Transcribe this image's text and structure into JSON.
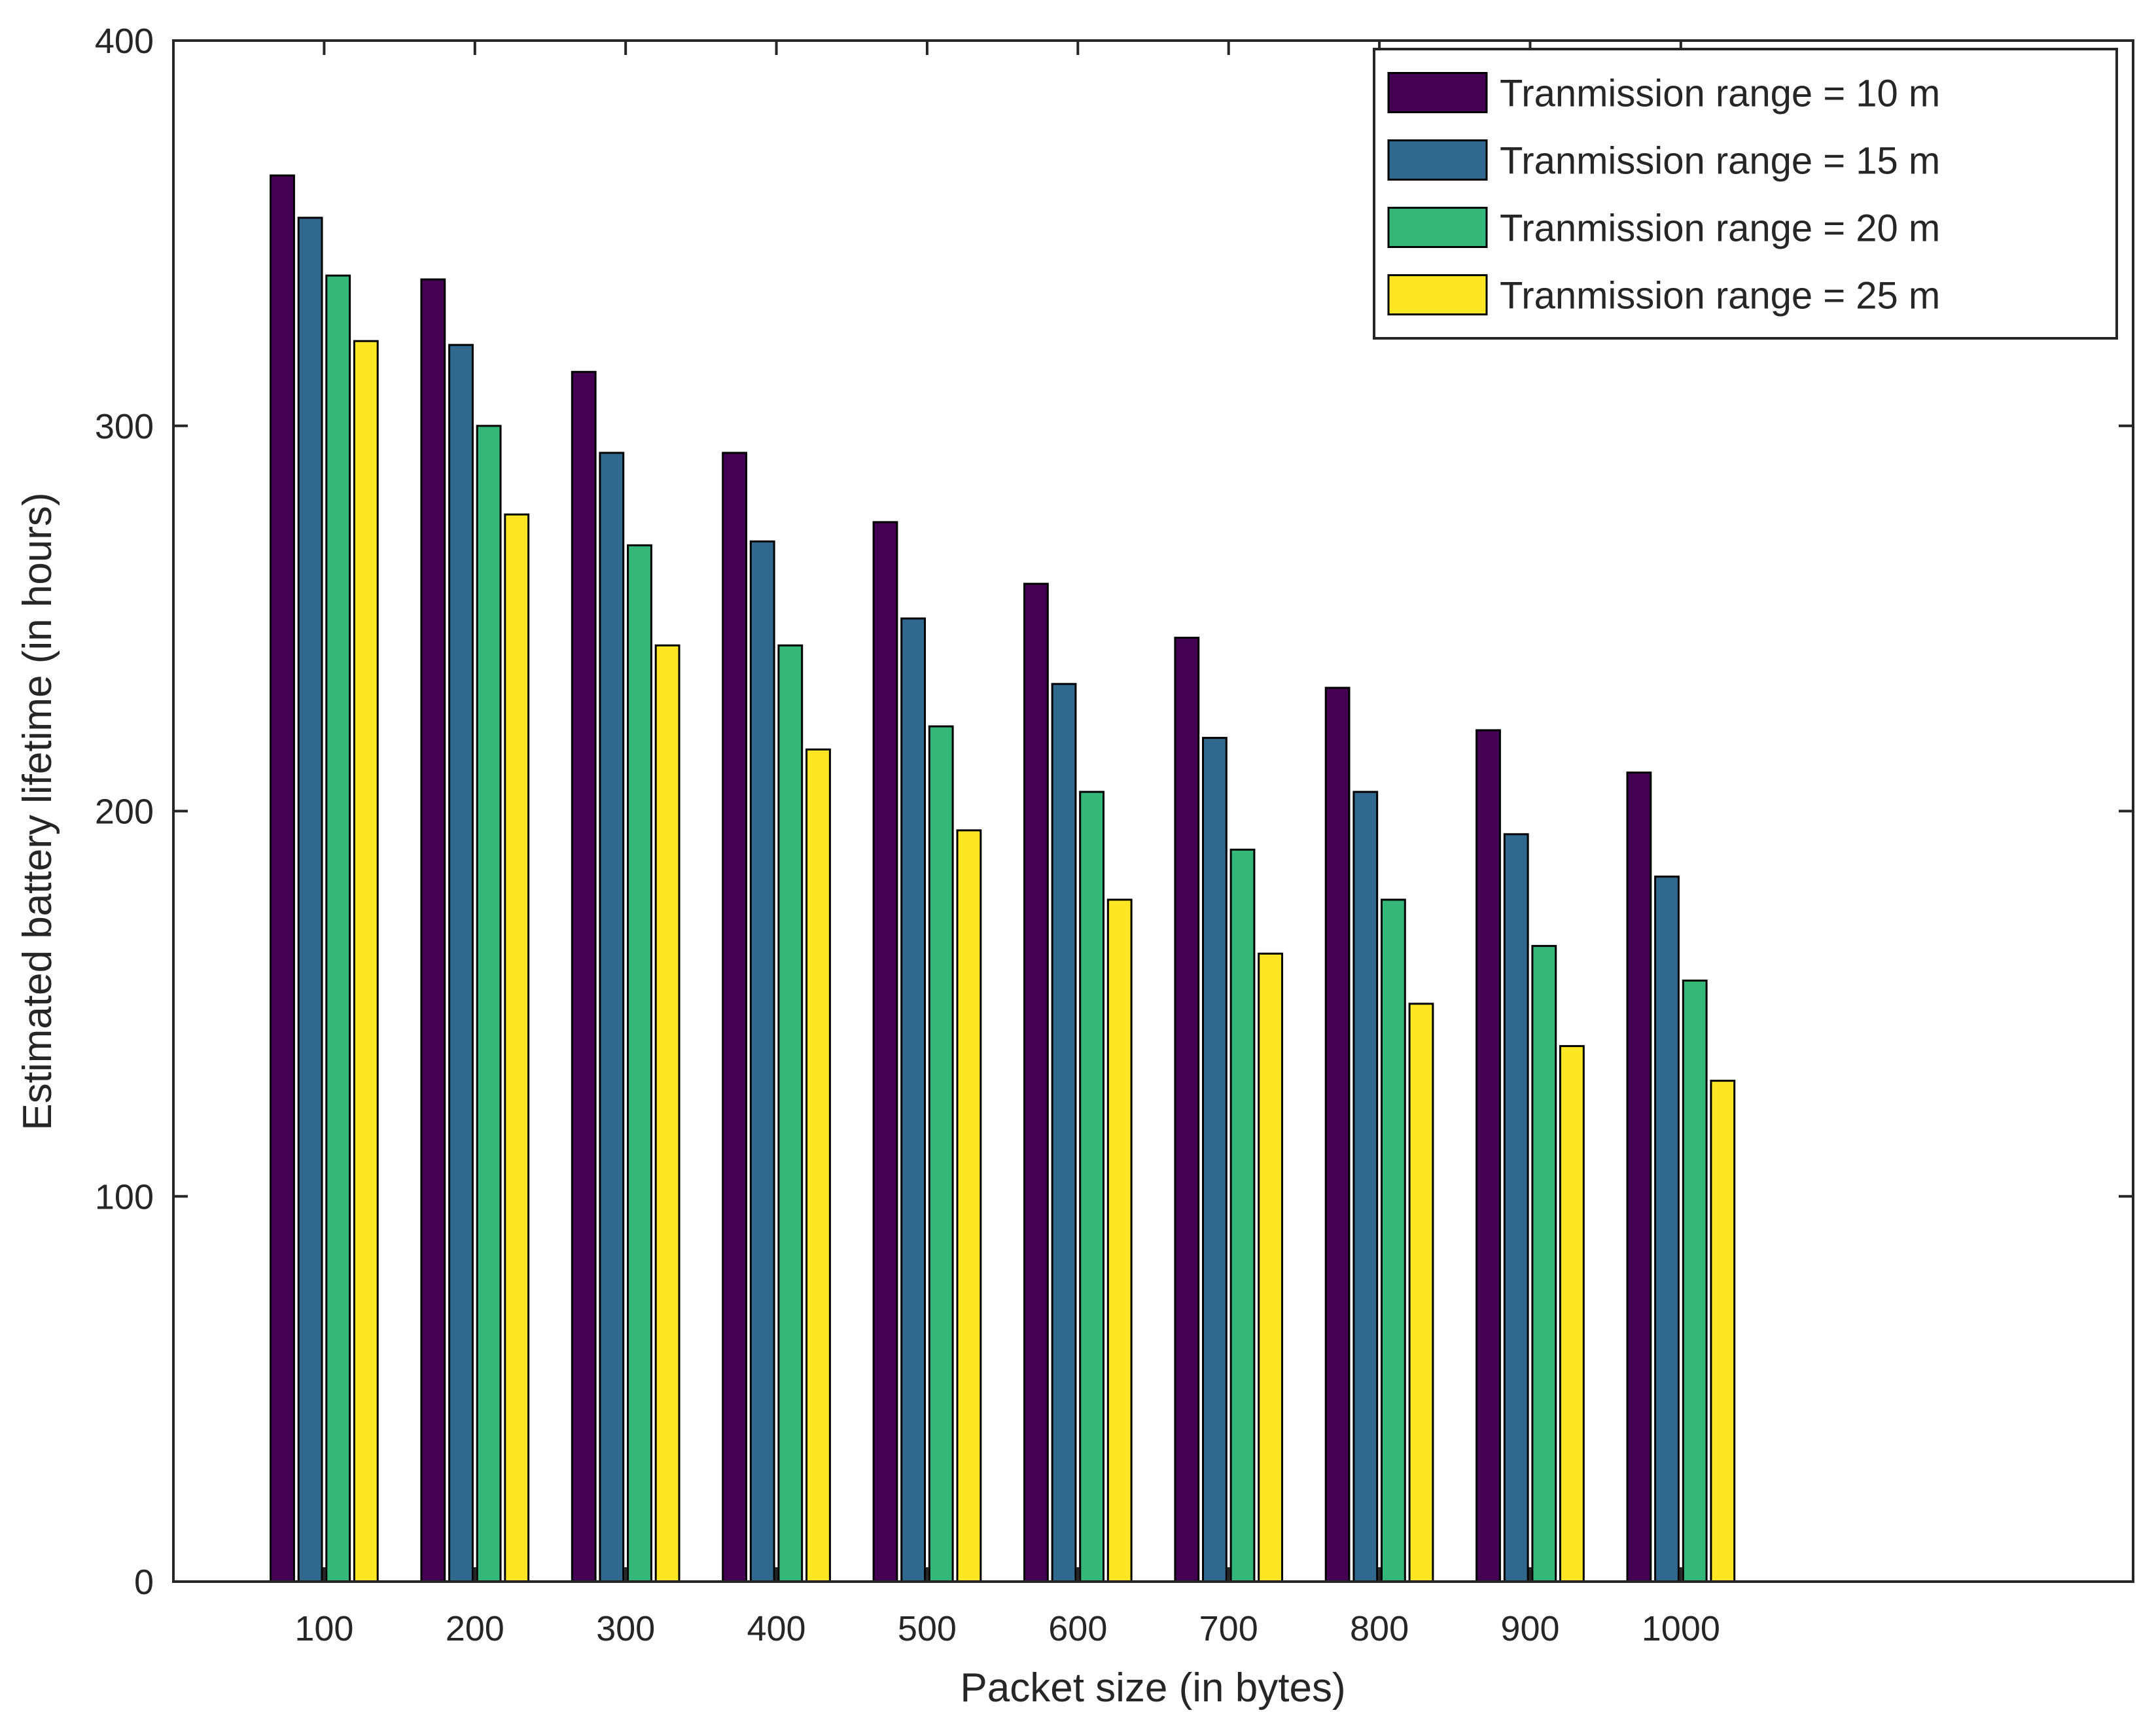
{
  "chart_data": {
    "type": "bar",
    "xlabel": "Packet size (in bytes)",
    "ylabel": "Estimated battery lifetime (in hours)",
    "categories": [
      "100",
      "200",
      "300",
      "400",
      "500",
      "600",
      "700",
      "800",
      "900",
      "1000"
    ],
    "x_range": [
      0,
      1300
    ],
    "ylim": [
      0,
      400
    ],
    "yticks": [
      0,
      100,
      200,
      300,
      400
    ],
    "grid": false,
    "legend_position": "top-right",
    "series": [
      {
        "name": "Tranmission range = 10 m",
        "color": "#440154",
        "values": [
          365,
          338,
          314,
          293,
          275,
          259,
          245,
          232,
          221,
          210
        ]
      },
      {
        "name": "Tranmission range = 15 m",
        "color": "#31688e",
        "values": [
          354,
          321,
          293,
          270,
          250,
          233,
          219,
          205,
          194,
          183
        ]
      },
      {
        "name": "Tranmission range = 20 m",
        "color": "#35b779",
        "values": [
          339,
          300,
          269,
          243,
          222,
          205,
          190,
          177,
          165,
          156
        ]
      },
      {
        "name": "Tranmission range = 25 m",
        "color": "#fde725",
        "values": [
          322,
          277,
          243,
          216,
          195,
          177,
          163,
          150,
          139,
          130
        ]
      }
    ]
  }
}
